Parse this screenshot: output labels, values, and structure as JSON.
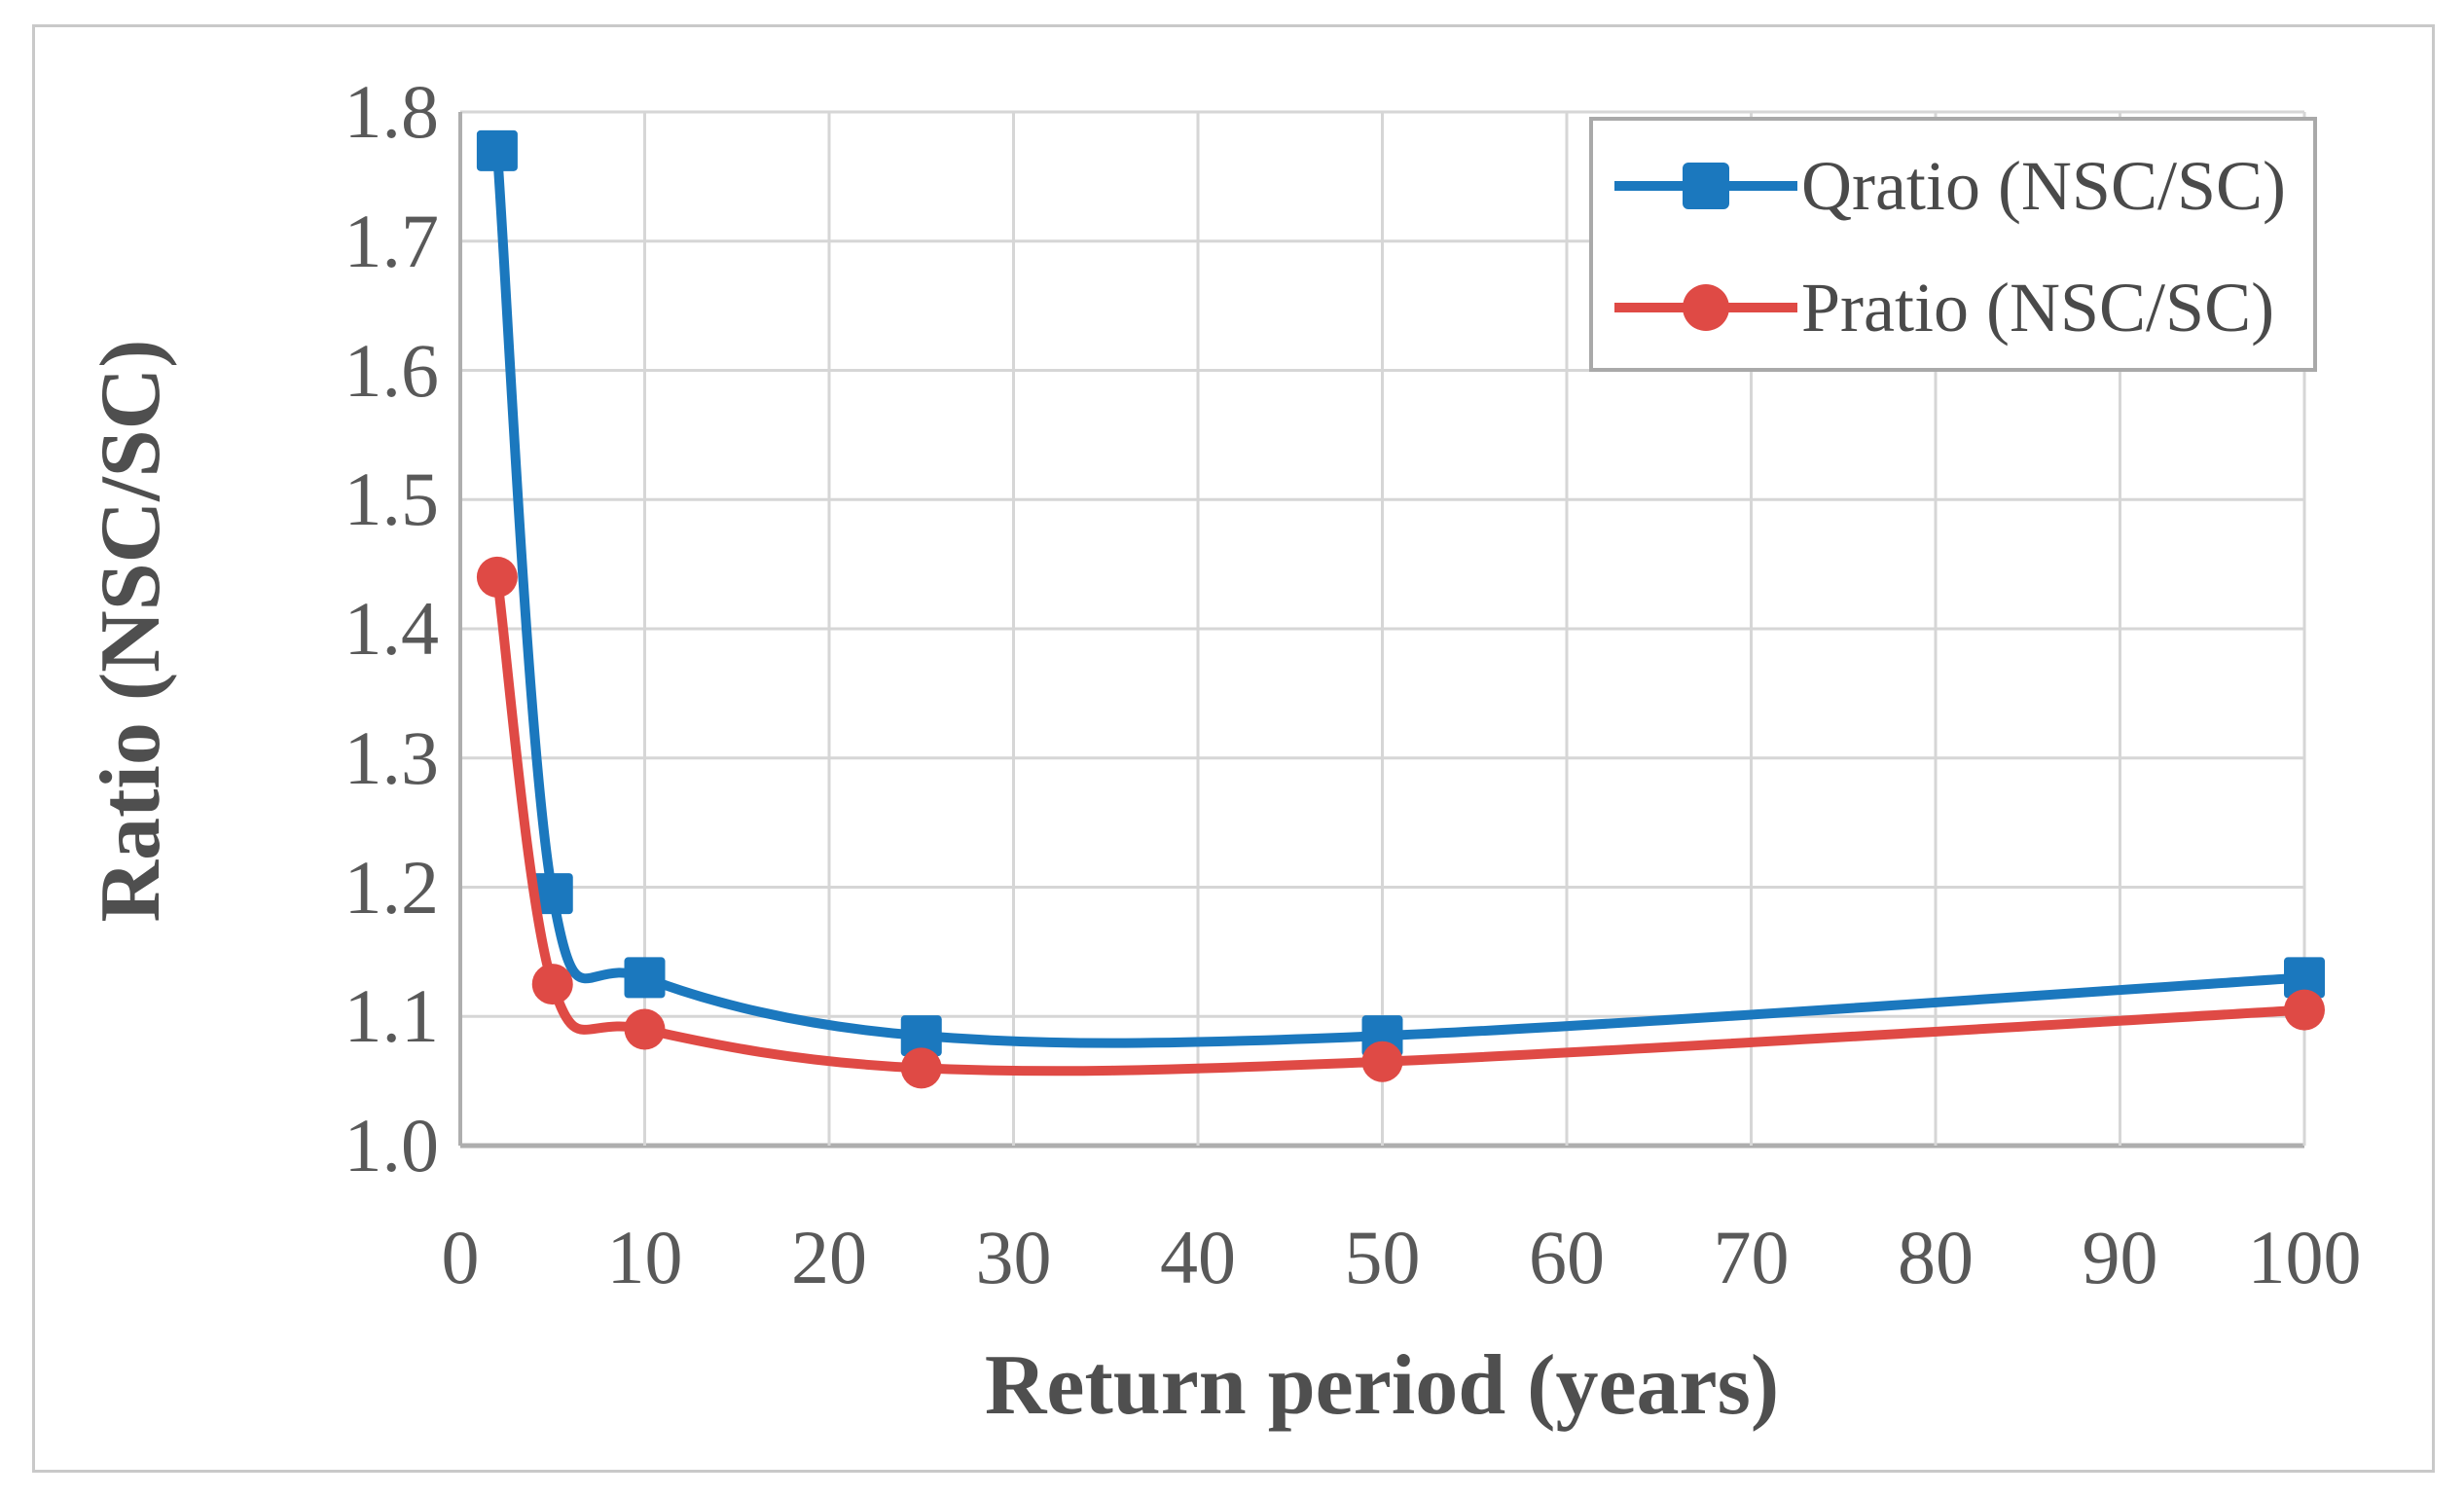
{
  "figure": {
    "background": "#ffffff",
    "border_color": "#c9c9c9"
  },
  "chart_data": {
    "type": "line",
    "title": "",
    "xlabel": "Return period (years)",
    "ylabel": "Ratio (NSC/SC)",
    "xlim": [
      0,
      100
    ],
    "ylim": [
      1.0,
      1.8
    ],
    "grid": true,
    "legend_position": "top-right",
    "x_ticks": [
      0,
      10,
      20,
      30,
      40,
      50,
      60,
      70,
      80,
      90,
      100
    ],
    "x_tick_labels": [
      "0",
      "10",
      "20",
      "30",
      "40",
      "50",
      "60",
      "70",
      "80",
      "90",
      "100"
    ],
    "y_ticks": [
      1.0,
      1.1,
      1.2,
      1.3,
      1.4,
      1.5,
      1.6,
      1.7,
      1.8
    ],
    "y_tick_labels": [
      "1.0",
      "1.1",
      "1.2",
      "1.3",
      "1.4",
      "1.5",
      "1.6",
      "1.7",
      "1.8"
    ],
    "series": [
      {
        "name": "Qratio (NSC/SC)",
        "color": "#1b78be",
        "marker": "square",
        "x": [
          2,
          5,
          10,
          25,
          50,
          100
        ],
        "y": [
          1.77,
          1.195,
          1.13,
          1.085,
          1.085,
          1.13
        ]
      },
      {
        "name": "Pratio (NSC/SC)",
        "color": "#df4a45",
        "marker": "circle",
        "x": [
          2,
          5,
          10,
          25,
          50,
          100
        ],
        "y": [
          1.44,
          1.125,
          1.09,
          1.06,
          1.065,
          1.105
        ]
      }
    ],
    "colors": {
      "grid": "#d6d6d6",
      "axis": "#aeaeae",
      "tick_text": "#595959",
      "title_text": "#4f4f4f",
      "legend_text": "#4a4a4a",
      "legend_border": "#a9a9a9"
    }
  }
}
